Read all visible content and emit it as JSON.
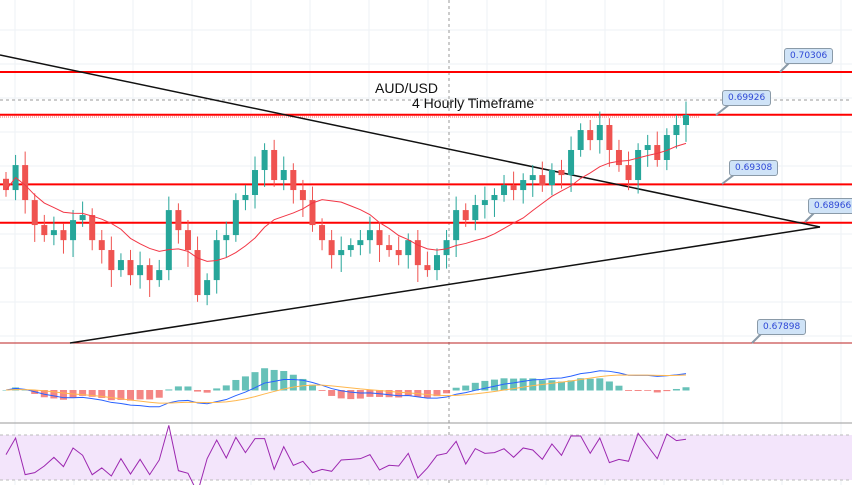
{
  "chart_data": {
    "type": "candlestick",
    "title": "AUD/USD",
    "subtitle": "4 Hourly Timeframe",
    "ylim": [
      0.6755,
      0.707
    ],
    "closes": [
      0.69257,
      0.69479,
      0.69168,
      0.68946,
      0.68857,
      0.68901,
      0.68812,
      0.6899,
      0.69035,
      0.68812,
      0.68724,
      0.68546,
      0.68635,
      0.68501,
      0.6859,
      0.68457,
      0.68546,
      0.69079,
      0.68901,
      0.68724,
      0.68324,
      0.68457,
      0.68812,
      0.68857,
      0.69168,
      0.69213,
      0.69435,
      0.69613,
      0.69346,
      0.69435,
      0.69257,
      0.69168,
      0.68946,
      0.68812,
      0.68679,
      0.68724,
      0.68768,
      0.68812,
      0.68901,
      0.68768,
      0.68724,
      0.68679,
      0.68812,
      0.6859,
      0.68546,
      0.68679,
      0.68812,
      0.69079,
      0.6899,
      0.69124,
      0.69168,
      0.69213,
      0.69301,
      0.69257,
      0.69346,
      0.6939,
      0.69301,
      0.69435,
      0.6939,
      0.69613,
      0.6979,
      0.69701,
      0.69835,
      0.69613,
      0.69479,
      0.69346,
      0.69613,
      0.69657,
      0.69524,
      0.69746,
      0.69835,
      0.69924
    ],
    "levels": [
      {
        "label": "0.70306",
        "value": 0.70306
      },
      {
        "label": "0.69926",
        "value": 0.69926
      },
      {
        "label": "0.69308",
        "value": 0.69308
      },
      {
        "label": "0.68966",
        "value": 0.68966
      },
      {
        "label": "0.67898",
        "value": 0.67898
      }
    ],
    "colors": {
      "up": "#26a69a",
      "down": "#ef5350",
      "level": "#ff0000",
      "ma": "#f23645",
      "macd": "#2962ff",
      "signal": "#ffb74d",
      "rsi": "#9c27b0"
    }
  }
}
